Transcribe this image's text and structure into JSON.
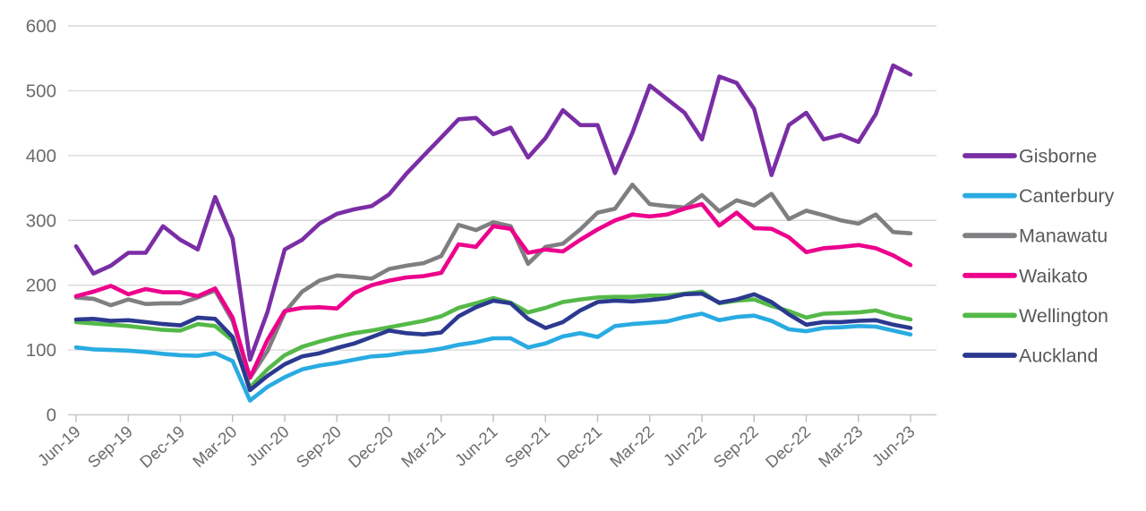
{
  "chart_data": {
    "type": "line",
    "title": "",
    "xlabel": "",
    "ylabel": "",
    "ylim": [
      0,
      600
    ],
    "y_ticks": [
      0,
      100,
      200,
      300,
      400,
      500,
      600
    ],
    "grid": "horizontal",
    "legend_position": "right",
    "x": [
      "Jun-19",
      "Jul-19",
      "Aug-19",
      "Sep-19",
      "Oct-19",
      "Nov-19",
      "Dec-19",
      "Jan-20",
      "Feb-20",
      "Mar-20",
      "Apr-20",
      "May-20",
      "Jun-20",
      "Jul-20",
      "Aug-20",
      "Sep-20",
      "Oct-20",
      "Nov-20",
      "Dec-20",
      "Jan-21",
      "Feb-21",
      "Mar-21",
      "Apr-21",
      "May-21",
      "Jun-21",
      "Jul-21",
      "Aug-21",
      "Sep-21",
      "Oct-21",
      "Nov-21",
      "Dec-21",
      "Jan-22",
      "Feb-22",
      "Mar-22",
      "Apr-22",
      "May-22",
      "Jun-22",
      "Jul-22",
      "Aug-22",
      "Sep-22",
      "Oct-22",
      "Nov-22",
      "Dec-22",
      "Jan-23",
      "Feb-23",
      "Mar-23",
      "Apr-23",
      "May-23",
      "Jun-23"
    ],
    "x_axis_tick_labels": [
      "Jun-19",
      "Sep-19",
      "Dec-19",
      "Mar-20",
      "Jun-20",
      "Sep-20",
      "Dec-20",
      "Mar-21",
      "Jun-21",
      "Sep-21",
      "Dec-21",
      "Mar-22",
      "Jun-22",
      "Sep-22",
      "Dec-22",
      "Mar-23",
      "Jun-23"
    ],
    "series": [
      {
        "name": "Gisborne",
        "color": "#7A2EA5",
        "values": [
          260,
          218,
          230,
          250,
          250,
          291,
          270,
          255,
          336,
          272,
          85,
          158,
          255,
          270,
          295,
          310,
          317,
          322,
          340,
          372,
          400,
          428,
          456,
          458,
          433,
          443,
          397,
          427,
          470,
          447,
          447,
          373,
          435,
          508,
          487,
          466,
          425,
          522,
          512,
          472,
          370,
          447,
          466,
          425,
          432,
          421,
          464,
          539,
          525
        ]
      },
      {
        "name": "Canterbury",
        "color": "#29ABE2",
        "values": [
          104,
          101,
          100,
          99,
          97,
          94,
          92,
          91,
          95,
          83,
          22,
          43,
          58,
          70,
          76,
          80,
          85,
          90,
          92,
          96,
          98,
          102,
          108,
          112,
          118,
          118,
          104,
          110,
          121,
          126,
          120,
          137,
          140,
          142,
          144,
          151,
          156,
          146,
          151,
          153,
          145,
          132,
          129,
          134,
          135,
          137,
          136,
          130,
          124
        ]
      },
      {
        "name": "Manawatu",
        "color": "#7F7F82",
        "values": [
          181,
          179,
          169,
          178,
          171,
          172,
          172,
          181,
          192,
          145,
          57,
          98,
          158,
          190,
          207,
          215,
          213,
          210,
          225,
          230,
          234,
          245,
          293,
          285,
          297,
          291,
          233,
          259,
          264,
          286,
          312,
          318,
          355,
          325,
          322,
          320,
          339,
          314,
          331,
          323,
          341,
          302,
          315,
          308,
          300,
          295,
          309,
          282,
          280
        ]
      },
      {
        "name": "Waikato",
        "color": "#EC008C",
        "values": [
          183,
          190,
          199,
          186,
          194,
          189,
          189,
          183,
          195,
          150,
          57,
          115,
          160,
          165,
          166,
          164,
          188,
          200,
          207,
          212,
          214,
          219,
          263,
          259,
          291,
          287,
          250,
          255,
          252,
          270,
          286,
          300,
          309,
          306,
          309,
          318,
          325,
          292,
          312,
          288,
          287,
          274,
          251,
          257,
          259,
          262,
          257,
          246,
          231
        ]
      },
      {
        "name": "Wellington",
        "color": "#54B948",
        "values": [
          143,
          141,
          139,
          137,
          134,
          131,
          130,
          140,
          137,
          115,
          42,
          70,
          92,
          105,
          113,
          120,
          126,
          130,
          135,
          140,
          145,
          152,
          165,
          172,
          180,
          173,
          158,
          165,
          174,
          178,
          181,
          182,
          182,
          184,
          184,
          187,
          190,
          172,
          176,
          178,
          168,
          160,
          150,
          156,
          157,
          158,
          161,
          153,
          147
        ]
      },
      {
        "name": "Auckland",
        "color": "#2B3990",
        "values": [
          147,
          148,
          145,
          146,
          143,
          140,
          138,
          150,
          148,
          120,
          38,
          60,
          78,
          90,
          95,
          103,
          110,
          120,
          130,
          126,
          124,
          127,
          152,
          166,
          176,
          172,
          148,
          134,
          143,
          161,
          174,
          176,
          175,
          177,
          180,
          186,
          187,
          173,
          178,
          186,
          174,
          155,
          139,
          143,
          143,
          145,
          146,
          139,
          134
        ]
      }
    ],
    "style": {
      "grid_color": "#D9D9D9",
      "axis_line_color": "#C9C9C9",
      "tick_color": "#BFBFBF",
      "axis_label_color": "#6B6B6B",
      "legend_text_color": "#58595B",
      "background": "#FFFFFF"
    }
  }
}
